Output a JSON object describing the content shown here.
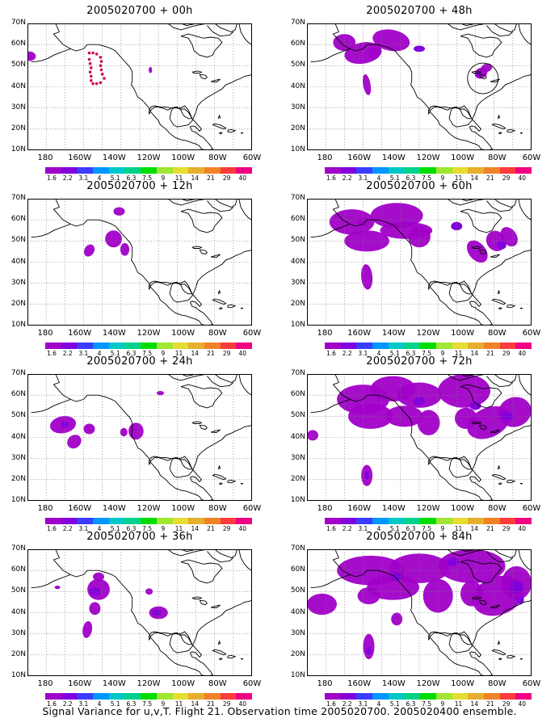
{
  "panels": [
    {
      "title": "2005020700 + 00h",
      "lead": "00h"
    },
    {
      "title": "2005020700 + 12h",
      "lead": "12h"
    },
    {
      "title": "2005020700 + 24h",
      "lead": "24h"
    },
    {
      "title": "2005020700 + 36h",
      "lead": "36h"
    },
    {
      "title": "2005020700 + 48h",
      "lead": "48h"
    },
    {
      "title": "2005020700 + 60h",
      "lead": "60h"
    },
    {
      "title": "2005020700 + 72h",
      "lead": "72h"
    },
    {
      "title": "2005020700 + 84h",
      "lead": "84h"
    }
  ],
  "axes": {
    "lat_labels": [
      "70N",
      "60N",
      "50N",
      "40N",
      "30N",
      "20N",
      "10N"
    ],
    "lon_labels": [
      "180",
      "160W",
      "140W",
      "120W",
      "100W",
      "80W",
      "60W"
    ]
  },
  "colorbar": {
    "labels": [
      "1.6",
      "2.2",
      "3.1",
      "4",
      "5.1",
      "6.3",
      "7.5",
      "9",
      "11",
      "14",
      "21",
      "29",
      "40"
    ],
    "colors": [
      "#a000c8",
      "#8200dc",
      "#3c3cff",
      "#0096ff",
      "#00c8c8",
      "#00d28c",
      "#00dc00",
      "#a0e632",
      "#e6dc32",
      "#e6af2d",
      "#f08228",
      "#fa3c3c",
      "#f00082"
    ]
  },
  "footer": "Signal Variance for u,v,T. Flight 21. Observation time 2005020700. 2005020400 ensemble."
}
